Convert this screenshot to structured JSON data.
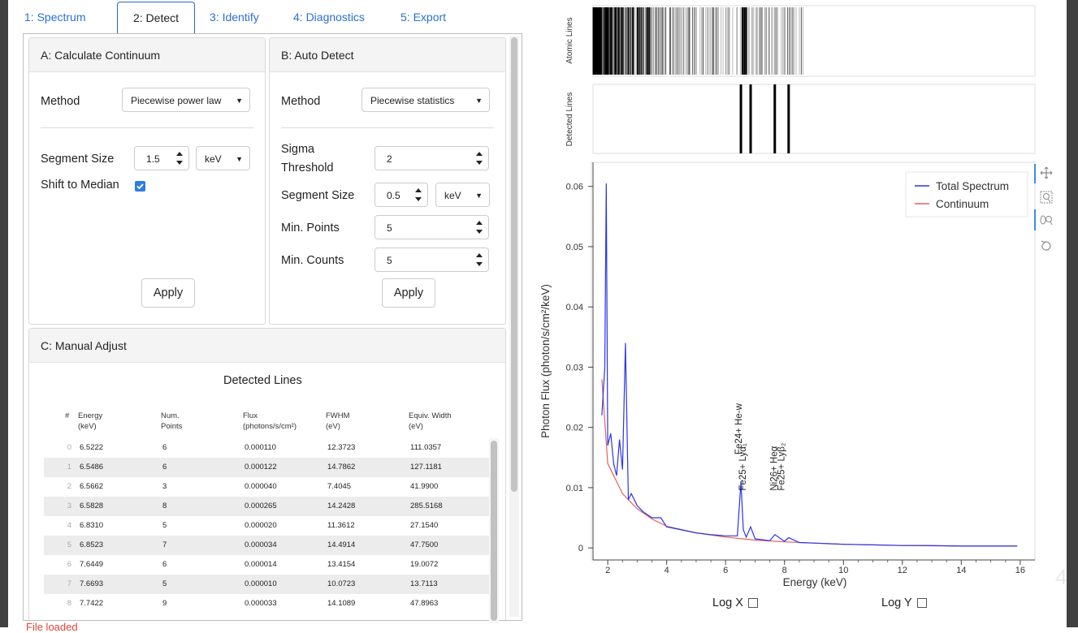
{
  "tabs": [
    {
      "label": "1: Spectrum"
    },
    {
      "label": "2: Detect",
      "active": true
    },
    {
      "label": "3: Identify"
    },
    {
      "label": "4: Diagnostics"
    },
    {
      "label": "5: Export"
    }
  ],
  "panel_a": {
    "title": "A: Calculate Continuum",
    "method_label": "Method",
    "method_value": "Piecewise power law",
    "segment_size_label": "Segment Size",
    "segment_size_value": "1.5",
    "segment_unit": "keV",
    "shift_label": "Shift to Median",
    "shift_checked": true,
    "apply_label": "Apply"
  },
  "panel_b": {
    "title": "B: Auto Detect",
    "method_label": "Method",
    "method_value": "Piecewise statistics",
    "sigma_label_1": "Sigma",
    "sigma_label_2": "Threshold",
    "sigma_value": "2",
    "segment_size_label": "Segment Size",
    "segment_size_value": "0.5",
    "segment_unit": "keV",
    "min_points_label": "Min. Points",
    "min_points_value": "5",
    "min_counts_label": "Min. Counts",
    "min_counts_value": "5",
    "apply_label": "Apply"
  },
  "panel_c": {
    "title": "C: Manual Adjust",
    "table_title": "Detected Lines",
    "columns": [
      {
        "l1": "#",
        "l2": ""
      },
      {
        "l1": "Energy",
        "l2": "(keV)"
      },
      {
        "l1": "Num.",
        "l2": "Points"
      },
      {
        "l1": "Flux",
        "l2": "(photons/s/cm²)"
      },
      {
        "l1": "FWHM",
        "l2": "(eV)"
      },
      {
        "l1": "Equiv. Width",
        "l2": "(eV)"
      }
    ],
    "rows": [
      [
        "0",
        "6.5222",
        "6",
        "0.000110",
        "12.3723",
        "111.0357"
      ],
      [
        "1",
        "6.5486",
        "6",
        "0.000122",
        "14.7862",
        "127.1181"
      ],
      [
        "2",
        "6.5662",
        "3",
        "0.000040",
        "7.4045",
        "41.9900"
      ],
      [
        "3",
        "6.5828",
        "8",
        "0.000265",
        "14.2428",
        "285.5168"
      ],
      [
        "4",
        "6.8310",
        "5",
        "0.000020",
        "11.3612",
        "27.1540"
      ],
      [
        "5",
        "6.8523",
        "7",
        "0.000034",
        "14.4914",
        "47.7500"
      ],
      [
        "6",
        "7.6449",
        "6",
        "0.000014",
        "13.4154",
        "19.0072"
      ],
      [
        "7",
        "7.6693",
        "5",
        "0.000010",
        "10.0723",
        "13.7113"
      ],
      [
        "8",
        "7.7422",
        "9",
        "0.000033",
        "14.1089",
        "47.8963"
      ]
    ]
  },
  "status_text": "File loaded",
  "slide_number": "4",
  "plot": {
    "atomic_label": "Atomic Lines",
    "detected_label": "Detected Lines",
    "detected_lines_keV": [
      6.52,
      6.85,
      7.67,
      8.14
    ],
    "log_x_label": "Log X",
    "log_y_label": "Log Y",
    "line_annotations": [
      "Fe24+ He-w",
      "Fe25+ Lyα₁",
      "Ni26+ Heα",
      "Fe25+ Lyβ₂"
    ]
  },
  "chart_data": {
    "type": "line",
    "xlabel": "Energy (keV)",
    "ylabel": "Photon Flux (photon/s/cm²/keV)",
    "xlim": [
      1.5,
      16.5
    ],
    "ylim": [
      -0.002,
      0.064
    ],
    "x_ticks": [
      2,
      4,
      6,
      8,
      10,
      12,
      14,
      16
    ],
    "y_ticks": [
      0,
      0.01,
      0.02,
      0.03,
      0.04,
      0.05,
      0.06
    ],
    "y_tick_labels": [
      "0",
      "0.01",
      "0.02",
      "0.03",
      "0.04",
      "0.05",
      "0.06"
    ],
    "legend_position": "top-right",
    "series": [
      {
        "name": "Total Spectrum",
        "color": "#2a35e6",
        "x": [
          1.8,
          1.9,
          1.95,
          2.0,
          2.1,
          2.2,
          2.3,
          2.4,
          2.5,
          2.6,
          2.7,
          2.8,
          3.0,
          3.2,
          3.5,
          3.8,
          4.0,
          4.5,
          5.0,
          5.5,
          6.0,
          6.4,
          6.52,
          6.6,
          6.7,
          6.85,
          7.0,
          7.5,
          7.67,
          8.0,
          8.14,
          8.5,
          9.0,
          10.0,
          11.0,
          12.0,
          13.0,
          14.0,
          15.0,
          15.9
        ],
        "y": [
          0.022,
          0.03,
          0.0605,
          0.017,
          0.019,
          0.014,
          0.012,
          0.018,
          0.013,
          0.034,
          0.008,
          0.009,
          0.007,
          0.006,
          0.005,
          0.005,
          0.0035,
          0.003,
          0.0025,
          0.0022,
          0.002,
          0.002,
          0.011,
          0.003,
          0.0018,
          0.0035,
          0.0015,
          0.0012,
          0.0022,
          0.0011,
          0.0017,
          0.0009,
          0.0008,
          0.0006,
          0.0005,
          0.0004,
          0.0004,
          0.0003,
          0.0003,
          0.0003
        ]
      },
      {
        "name": "Continuum",
        "color": "#e85f5f",
        "x": [
          1.8,
          2.0,
          2.5,
          3.0,
          3.5,
          4.0,
          5.0,
          6.0,
          7.0,
          8.0,
          9.0,
          10.0,
          12.0,
          14.0,
          15.9
        ],
        "y": [
          0.028,
          0.014,
          0.009,
          0.0065,
          0.0048,
          0.0036,
          0.0025,
          0.0018,
          0.0013,
          0.001,
          0.0008,
          0.0006,
          0.0004,
          0.0003,
          0.0003
        ]
      }
    ]
  }
}
